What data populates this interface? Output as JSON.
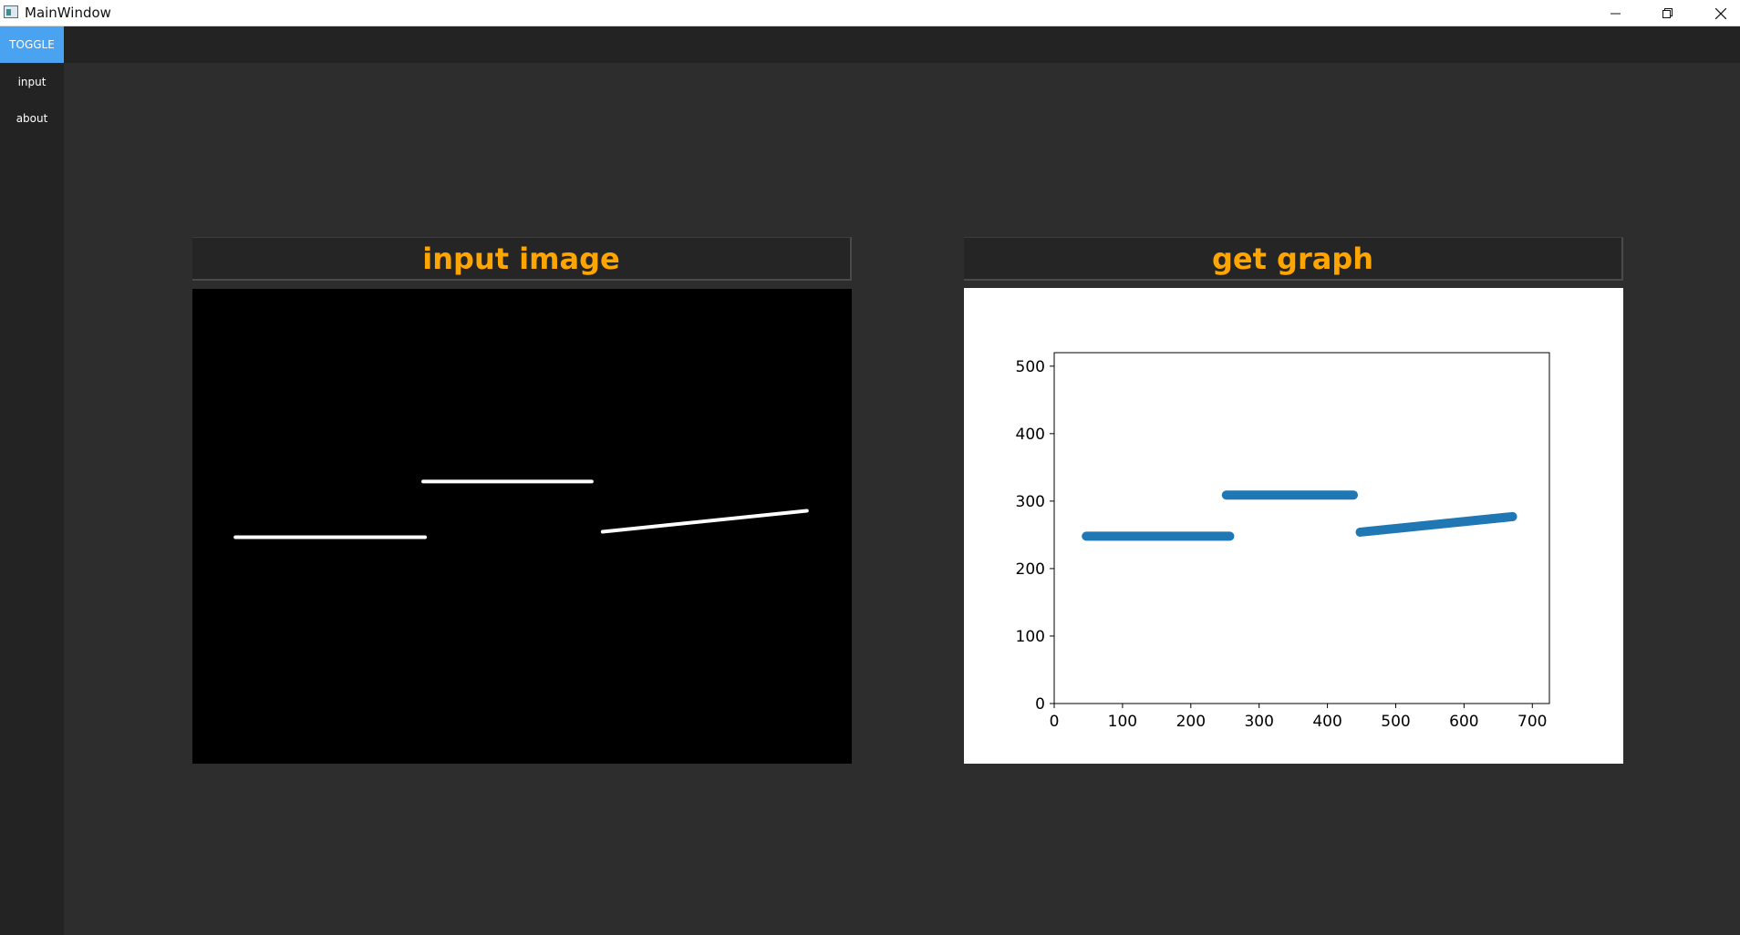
{
  "window": {
    "title": "MainWindow"
  },
  "sidebar": {
    "toggle_label": "TOGGLE",
    "items": [
      {
        "label": "input"
      },
      {
        "label": "about"
      }
    ]
  },
  "panels": {
    "input": {
      "title": "input image"
    },
    "graph": {
      "title": "get graph"
    }
  },
  "colors": {
    "accent": "#4aa3f0",
    "title_text": "#ffa500",
    "series": "#1f77b4",
    "background": "#2d2d2d"
  },
  "input_image": {
    "line_color": "#ffffff",
    "segments": [
      {
        "x1": 47,
        "y1": 248,
        "x2": 254,
        "y2": 248
      },
      {
        "x1": 252,
        "y1": 309,
        "x2": 436,
        "y2": 309
      },
      {
        "x1": 448,
        "y1": 254,
        "x2": 671,
        "y2": 277
      }
    ]
  },
  "chart_data": {
    "type": "scatter",
    "title": "",
    "xlabel": "",
    "ylabel": "",
    "xlim": [
      0,
      725
    ],
    "ylim": [
      0,
      520
    ],
    "xticks": [
      0,
      100,
      200,
      300,
      400,
      500,
      600,
      700
    ],
    "yticks": [
      0,
      100,
      200,
      300,
      400,
      500
    ],
    "grid": false,
    "series": [
      {
        "segments": [
          {
            "x": [
              47,
              257
            ],
            "y": [
              248,
              248
            ]
          },
          {
            "x": [
              252,
              438
            ],
            "y": [
              309,
              309
            ]
          },
          {
            "x": [
              448,
              671
            ],
            "y": [
              254,
              277
            ]
          }
        ]
      }
    ]
  }
}
